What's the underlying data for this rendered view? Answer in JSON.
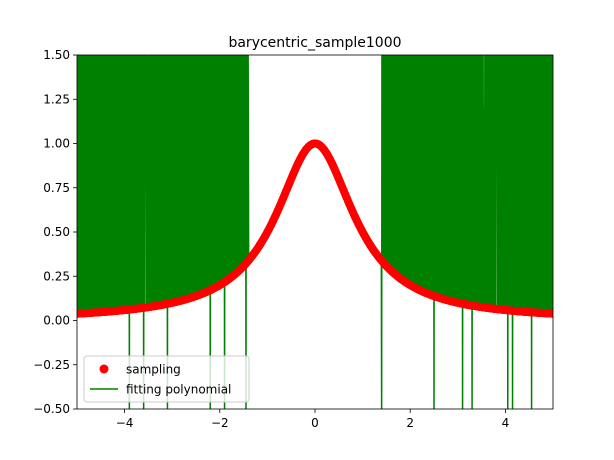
{
  "chart_data": {
    "type": "line",
    "title": "barycentric_sample1000",
    "xlabel": "",
    "ylabel": "",
    "xlim": [
      -5,
      5
    ],
    "ylim": [
      -0.5,
      1.5
    ],
    "x_ticks": [
      -4,
      -2,
      0,
      2,
      4
    ],
    "y_ticks": [
      -0.5,
      -0.25,
      0.0,
      0.25,
      0.5,
      0.75,
      1.0,
      1.25,
      1.5
    ],
    "x_tick_labels": [
      "−4",
      "−2",
      "0",
      "2",
      "4"
    ],
    "y_tick_labels": [
      "−0.50",
      "−0.25",
      "0.00",
      "0.25",
      "0.50",
      "0.75",
      "1.00",
      "1.25",
      "1.50"
    ],
    "grid": false,
    "legend_position": "lower-left",
    "series": [
      {
        "name": "sampling",
        "kind": "scatter",
        "function": "1/(1+x^2)",
        "x_range": [
          -5,
          5
        ],
        "n_points": 1000,
        "color": "#ff0000"
      },
      {
        "name": "fitting polynomial",
        "kind": "line",
        "color": "#008000",
        "stable_interval": [
          -1.4,
          1.4
        ],
        "oscillation_regions": [
          [
            -5,
            -1.4
          ],
          [
            1.4,
            5
          ]
        ],
        "downward_spikes_x": [
          -3.9,
          -3.6,
          -3.1,
          -2.2,
          -1.9,
          -1.45,
          1.4,
          2.5,
          3.1,
          3.3,
          4.05,
          4.15,
          4.55
        ],
        "spike_bottom": -0.5
      }
    ]
  }
}
